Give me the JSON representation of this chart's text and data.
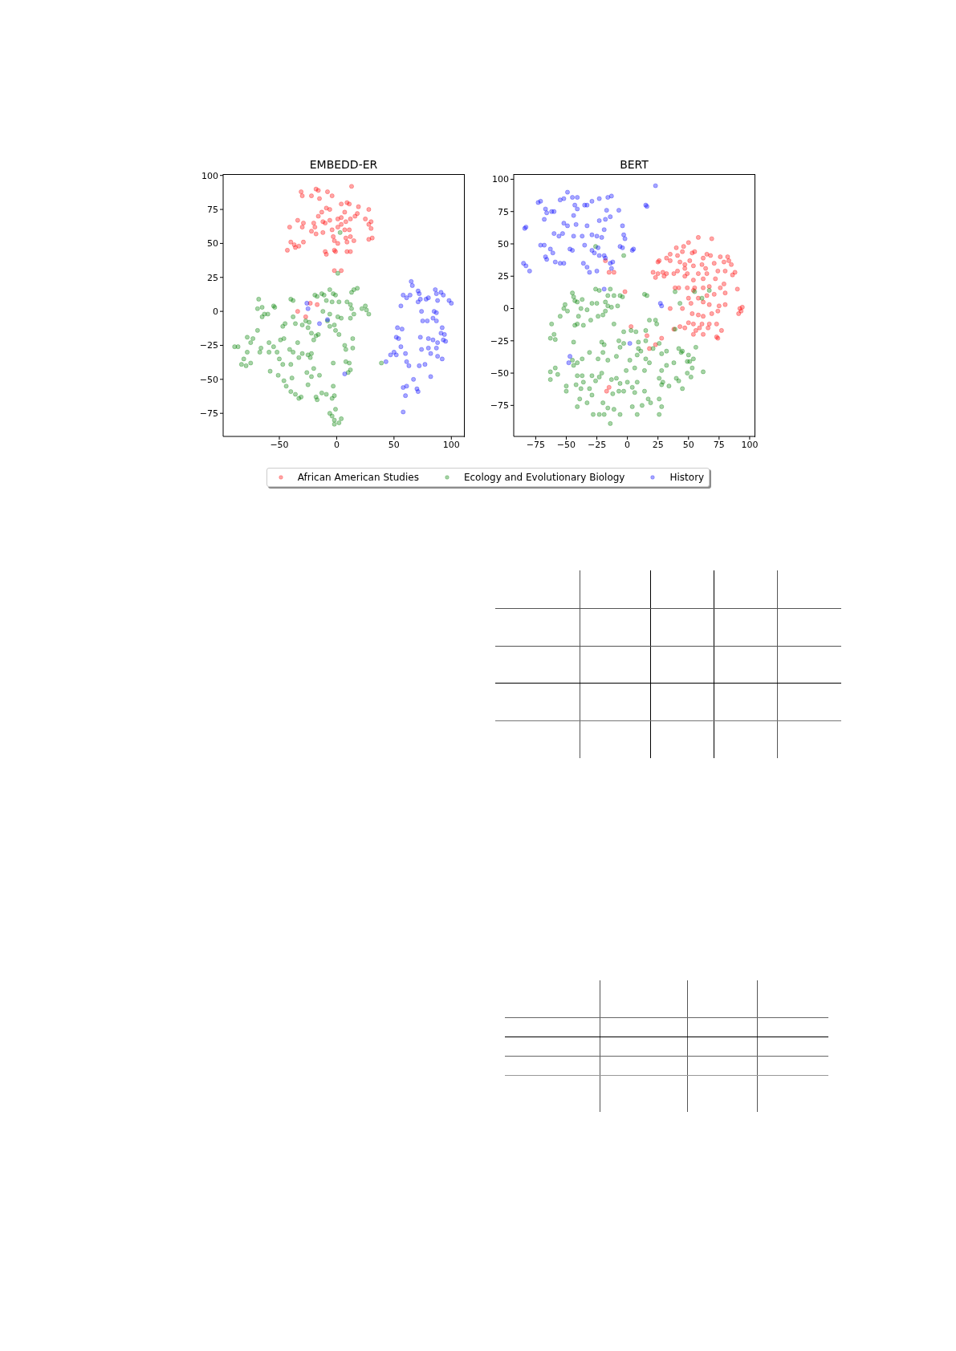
{
  "chart_data": [
    {
      "type": "scatter",
      "title": "EMBEDD-ER",
      "xlim": [
        -99,
        111
      ],
      "xticks": [
        -50,
        0,
        50,
        100
      ],
      "ylim": [
        -92,
        101
      ],
      "yticks": [
        -75,
        -50,
        -25,
        0,
        25,
        50,
        75,
        100
      ],
      "marker": "circle",
      "legend": "bottom",
      "series": [
        {
          "name": "African American Studies",
          "color": "#ff0000",
          "x": [
            13,
            -31,
            -30,
            -18,
            -16,
            -8,
            -4,
            -15,
            -22,
            4,
            9,
            11,
            7,
            19,
            18,
            16,
            28,
            -9,
            -6,
            -13,
            -16,
            -12,
            -10,
            -6,
            1,
            4,
            8,
            12,
            25,
            30,
            28,
            30,
            -41,
            -34,
            -29,
            -30,
            -20,
            -19,
            -22,
            -18,
            -12,
            -4,
            1,
            4,
            7,
            11,
            -3,
            -2,
            1,
            8,
            9,
            12,
            15,
            28,
            31,
            -40,
            -37,
            -36,
            -33,
            -43,
            -29,
            -10,
            -9,
            -2,
            -1,
            9,
            12,
            -2,
            4,
            -34,
            -27,
            -23,
            -17
          ],
          "values": [
            92,
            88,
            85,
            90,
            89,
            88,
            85,
            83,
            85,
            79,
            80,
            79,
            73,
            77,
            72,
            70,
            75,
            76,
            75,
            73,
            70,
            66,
            65,
            67,
            68,
            69,
            66,
            68,
            68,
            66,
            64,
            61,
            62,
            67,
            65,
            62,
            65,
            62,
            59,
            57,
            58,
            60,
            62,
            64,
            60,
            60,
            55,
            52,
            50,
            54,
            51,
            55,
            52,
            53,
            54,
            51,
            49,
            47,
            48,
            45,
            51,
            44,
            42,
            45,
            44,
            44,
            44,
            30,
            30,
            0,
            -4,
            6,
            5
          ]
        },
        {
          "name": "Ecology and Evolutionary Biology",
          "color": "#008000",
          "x": [
            -68,
            -69,
            -65,
            -63,
            -65,
            -55,
            -54,
            -60,
            -40,
            -38,
            -45,
            -47,
            -38,
            -36,
            -30,
            -27,
            -24,
            -25,
            -22,
            -18,
            -16,
            -20,
            -19,
            -17,
            -13,
            -11,
            -6,
            -3,
            -1,
            -9,
            -12,
            -4,
            2,
            9,
            15,
            18,
            13,
            12,
            13,
            15,
            12,
            22,
            25,
            26,
            28,
            -6,
            -8,
            -6,
            -2,
            -1,
            2,
            1,
            4,
            -89,
            -86,
            -78,
            -73,
            -75,
            -69,
            -66,
            -67,
            -78,
            -81,
            -83,
            -75,
            -79,
            -59,
            -55,
            -59,
            -52,
            -58,
            -49,
            -46,
            -50,
            -47,
            -41,
            -38,
            -34,
            -33,
            -40,
            -39,
            -51,
            -46,
            -44,
            -40,
            -36,
            -33,
            -31,
            -30,
            -25,
            -23,
            -22,
            -26,
            -25,
            -22,
            -20,
            -18,
            -17,
            -15,
            -13,
            -9,
            -3,
            -2,
            -4,
            -3,
            8,
            11,
            12,
            10,
            14,
            7,
            8,
            14,
            -6,
            -4,
            -1,
            -2,
            2,
            -2,
            4,
            39,
            1,
            3
          ],
          "values": [
            9,
            2,
            3,
            -2,
            -4,
            4,
            3,
            -2,
            9,
            8,
            -9,
            -11,
            -4,
            -9,
            -10,
            -7,
            -8,
            -12,
            -16,
            -18,
            -17,
            -21,
            12,
            11,
            13,
            12,
            16,
            13,
            12,
            8,
            0,
            7,
            7,
            7,
            16,
            17,
            14,
            5,
            2,
            -2,
            -5,
            2,
            4,
            1,
            -2,
            -2,
            -7,
            -11,
            -10,
            -14,
            -17,
            -4,
            -5,
            -26,
            -26,
            -19,
            -20,
            -23,
            -14,
            -27,
            -30,
            -30,
            -35,
            -39,
            -38,
            -40,
            -23,
            -26,
            -30,
            -30,
            -44,
            -21,
            -20,
            -35,
            -39,
            -28,
            -30,
            -23,
            -34,
            -39,
            -49,
            -47,
            -51,
            -55,
            -59,
            -61,
            -64,
            -63,
            -31,
            -32,
            -34,
            -31,
            -45,
            -54,
            -48,
            -42,
            -63,
            -65,
            -47,
            -60,
            -61,
            -55,
            -62,
            -64,
            -38,
            -37,
            -38,
            -43,
            -45,
            -27,
            -25,
            -28,
            -20,
            -75,
            -77,
            -72,
            -80,
            -82,
            -83,
            -79,
            -38,
            28,
            58
          ]
        },
        {
          "name": "History",
          "color": "#0000ff",
          "x": [
            65,
            66,
            58,
            61,
            64,
            56,
            71,
            72,
            71,
            73,
            78,
            80,
            74,
            75,
            79,
            86,
            87,
            91,
            88,
            93,
            98,
            100,
            85,
            87,
            84,
            87,
            92,
            91,
            94,
            93,
            95,
            88,
            87,
            82,
            80,
            74,
            73,
            80,
            84,
            88,
            92,
            53,
            57,
            52,
            54,
            50,
            47,
            52,
            60,
            56,
            61,
            63,
            72,
            77,
            67,
            58,
            61,
            60,
            71,
            70,
            58,
            82,
            43,
            -26,
            -25,
            -15,
            -8,
            7
          ],
          "values": [
            22,
            19,
            12,
            10,
            12,
            4,
            15,
            13,
            7,
            9,
            9,
            10,
            0,
            -7,
            -7,
            16,
            13,
            14,
            8,
            12,
            8,
            6,
            0,
            -1,
            -5,
            -7,
            -12,
            -16,
            -17,
            -21,
            -22,
            -23,
            -27,
            -31,
            -27,
            -28,
            -19,
            -20,
            -21,
            -33,
            -35,
            -12,
            -13,
            -19,
            -20,
            -30,
            -32,
            -32,
            -31,
            -26,
            -37,
            -40,
            -40,
            -39,
            -50,
            -56,
            -55,
            -62,
            -59,
            -57,
            -74,
            -48,
            -37,
            6,
            2,
            -9,
            -6,
            -46
          ]
        }
      ]
    },
    {
      "type": "scatter",
      "title": "BERT",
      "xlim": [
        -93,
        104
      ],
      "xticks": [
        -75,
        -50,
        -25,
        0,
        25,
        50,
        75,
        100
      ],
      "ylim": [
        -99,
        104
      ],
      "yticks": [
        -75,
        -50,
        -25,
        0,
        25,
        50,
        75,
        100
      ],
      "marker": "circle",
      "legend": "bottom",
      "series": [
        {
          "name": "African American Studies",
          "color": "#ff0000",
          "x": [
            58,
            69,
            50,
            46,
            40,
            35,
            41,
            45,
            55,
            53,
            65,
            68,
            62,
            76,
            82,
            83,
            26,
            25,
            32,
            35,
            43,
            47,
            51,
            54,
            61,
            64,
            71,
            79,
            85,
            21,
            25,
            29,
            32,
            38,
            41,
            47,
            49,
            58,
            65,
            74,
            80,
            88,
            23,
            30,
            47,
            54,
            62,
            72,
            86,
            39,
            42,
            49,
            55,
            62,
            67,
            76,
            79,
            90,
            50,
            58,
            65,
            71,
            80,
            54,
            35,
            45,
            52,
            62,
            67,
            75,
            80,
            92,
            93,
            91,
            94,
            53,
            58,
            62,
            69,
            74,
            50,
            54,
            61,
            67,
            73,
            43,
            47,
            56,
            59,
            66,
            77,
            54,
            62,
            73,
            74,
            38,
            -2,
            3,
            16,
            18,
            28,
            23,
            -18,
            -15,
            -11,
            -15,
            -17
          ],
          "values": [
            55,
            54,
            51,
            48,
            47,
            42,
            41,
            44,
            44,
            43,
            42,
            41,
            39,
            40,
            40,
            37,
            37,
            36,
            39,
            37,
            36,
            34,
            37,
            33,
            34,
            31,
            35,
            36,
            34,
            28,
            27,
            28,
            27,
            27,
            29,
            31,
            27,
            27,
            27,
            29,
            29,
            28,
            24,
            25,
            25,
            22,
            23,
            23,
            26,
            16,
            16,
            16,
            16,
            16,
            17,
            16,
            19,
            15,
            8,
            8,
            10,
            11,
            12,
            14,
            0,
            0,
            4,
            5,
            3,
            2,
            3,
            0,
            -2,
            -4,
            1,
            -4,
            -5,
            -6,
            -4,
            -2,
            -11,
            -12,
            -12,
            -12,
            -12,
            -14,
            -15,
            -17,
            -15,
            -15,
            -17,
            -20,
            -20,
            -22,
            -23,
            -16,
            13,
            -14,
            -21,
            -31,
            -23,
            -28,
            37,
            28,
            28,
            -61,
            -64
          ]
        },
        {
          "name": "Ecology and Evolutionary Biology",
          "color": "#008000",
          "x": [
            -45,
            -44,
            -43,
            -51,
            -52,
            -49,
            -55,
            -62,
            -60,
            -63,
            -59,
            -63,
            -63,
            -57,
            -59,
            -50,
            -50,
            -41,
            -37,
            -38,
            -33,
            -40,
            -43,
            -41,
            -36,
            -30,
            -24,
            -20,
            -29,
            -25,
            -26,
            -23,
            -16,
            -14,
            -11,
            -6,
            -4,
            -18,
            -16,
            -13,
            -8,
            -18,
            -11,
            -3,
            3,
            7,
            15,
            18,
            14,
            16,
            23,
            24,
            -44,
            -45,
            -44,
            -41,
            -41,
            -37,
            -42,
            -36,
            -38,
            -41,
            -39,
            -33,
            -29,
            -31,
            -29,
            -26,
            -23,
            -21,
            -24,
            -20,
            -21,
            -19,
            -37,
            -31,
            -28,
            -23,
            -20,
            -16,
            -19,
            -14,
            -11,
            -6,
            -12,
            -7,
            -13,
            -9,
            -6,
            -3,
            0,
            -1,
            2,
            6,
            8,
            9,
            11,
            15,
            18,
            14,
            8,
            4,
            6,
            14,
            17,
            19,
            12,
            4,
            8,
            26,
            28,
            26,
            28,
            26,
            29,
            34,
            28,
            32,
            38,
            28,
            32,
            26,
            21,
            15,
            9,
            -3,
            -7,
            -6,
            -9,
            -16,
            42,
            44,
            45,
            40,
            42,
            45,
            50,
            51,
            54,
            53,
            49,
            52,
            56,
            62,
            49,
            43,
            39,
            55,
            61,
            67,
            39,
            -26,
            -3
          ],
          "values": [
            12,
            9,
            6,
            3,
            0,
            -2,
            -6,
            -12,
            -20,
            -23,
            -24,
            -49,
            -55,
            -51,
            -46,
            -60,
            -64,
            5,
            7,
            0,
            -1,
            -6,
            -13,
            -12,
            -13,
            -9,
            -6,
            -5,
            4,
            4,
            15,
            14,
            10,
            15,
            10,
            10,
            9,
            5,
            2,
            1,
            2,
            -2,
            -12,
            -18,
            -17,
            -18,
            -17,
            -9,
            11,
            10,
            -9,
            -12,
            -26,
            -40,
            -44,
            -42,
            -52,
            -52,
            -59,
            -57,
            -62,
            -76,
            -70,
            -73,
            -67,
            -62,
            -52,
            -56,
            -53,
            -50,
            -39,
            -34,
            -26,
            -28,
            -39,
            -34,
            -82,
            -82,
            -73,
            -77,
            -82,
            -89,
            -78,
            -82,
            -66,
            -64,
            -55,
            -54,
            -58,
            -64,
            -57,
            -48,
            -40,
            -46,
            -36,
            -31,
            -33,
            -39,
            -42,
            -48,
            -57,
            -61,
            -65,
            -64,
            -70,
            -73,
            -75,
            -76,
            -82,
            -70,
            -76,
            -82,
            -59,
            -54,
            -57,
            -60,
            -48,
            -44,
            -42,
            -35,
            -33,
            -27,
            -31,
            -25,
            -26,
            -27,
            -25,
            -30,
            -37,
            -40,
            -31,
            -34,
            -33,
            -54,
            -56,
            -62,
            -36,
            -41,
            -39,
            -46,
            -50,
            -53,
            -30,
            -49,
            -41,
            4,
            13,
            13,
            8,
            14,
            -16,
            48,
            41
          ]
        },
        {
          "name": "History",
          "color": "#0000ff",
          "x": [
            23,
            15,
            16,
            -71,
            -73,
            -84,
            -83,
            -83,
            -85,
            -80,
            -67,
            -66,
            -62,
            -60,
            -68,
            -55,
            -52,
            -49,
            -45,
            -41,
            -43,
            -41,
            -44,
            -35,
            -33,
            -29,
            -23,
            -16,
            -13,
            -17,
            -14,
            -23,
            -18,
            -7,
            -4,
            -3,
            -2,
            -6,
            -4,
            5,
            4,
            -52,
            -49,
            -42,
            -33,
            -60,
            -56,
            -53,
            -68,
            -71,
            -63,
            -61,
            -67,
            -66,
            -59,
            -55,
            -52,
            -47,
            -45,
            -44,
            -37,
            -35,
            -29,
            -25,
            -21,
            -19,
            -29,
            -27,
            -24,
            -23,
            -19,
            -18,
            -36,
            -33,
            -31,
            -25,
            -14,
            -13,
            -12,
            -19,
            27,
            28,
            -47,
            -48,
            2
          ],
          "values": [
            95,
            80,
            79,
            83,
            82,
            62,
            63,
            33,
            35,
            29,
            77,
            74,
            75,
            75,
            69,
            84,
            85,
            90,
            86,
            86,
            80,
            77,
            72,
            80,
            80,
            83,
            85,
            86,
            87,
            76,
            71,
            68,
            69,
            76,
            64,
            57,
            54,
            48,
            47,
            46,
            45,
            66,
            64,
            65,
            64,
            58,
            56,
            58,
            49,
            49,
            46,
            43,
            40,
            38,
            36,
            35,
            35,
            46,
            45,
            56,
            56,
            49,
            57,
            56,
            55,
            61,
            45,
            43,
            47,
            41,
            41,
            39,
            35,
            32,
            28,
            29,
            35,
            31,
            36,
            15,
            4,
            2,
            -37,
            -42,
            -27
          ]
        }
      ]
    }
  ]
}
